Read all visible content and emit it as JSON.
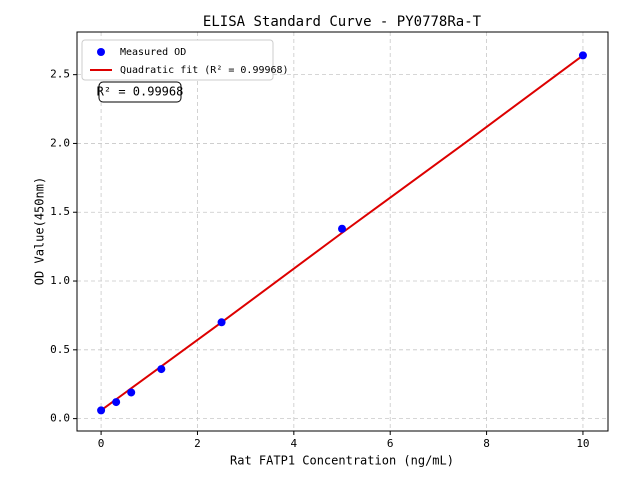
{
  "chart_data": {
    "type": "scatter",
    "title": "ELISA Standard Curve - PY0778Ra-T",
    "x_label": "Rat FATP1 Concentration (ng/mL)",
    "y_label": "OD Value(450nm)",
    "annotation": "R² = 0.99968",
    "series": [
      {
        "name": "Measured OD",
        "color": "#0000ff",
        "type": "scatter",
        "x": [
          0,
          0.3125,
          0.625,
          1.25,
          2.5,
          5,
          10
        ],
        "values": [
          0.06,
          0.12,
          0.19,
          0.36,
          0.7,
          1.38,
          2.64
        ]
      },
      {
        "name": "Quadratic fit (R² = 0.99968)",
        "color": "#dd0000",
        "type": "line",
        "x": [
          0,
          2.5,
          5,
          7.5,
          10
        ],
        "values": [
          0.06,
          0.7,
          1.35,
          1.99,
          2.64
        ]
      }
    ],
    "xlim": [
      -0.5,
      10.52
    ],
    "ylim": [
      -0.09,
      2.81
    ],
    "xticks": [
      0,
      2,
      4,
      6,
      8,
      10
    ],
    "yticks": [
      {
        "value": 0,
        "label": "0.0"
      },
      0.5,
      {
        "value": 1,
        "label": "1.0"
      },
      1.5,
      {
        "value": 2,
        "label": "2.0"
      },
      2.5
    ],
    "grid": true,
    "legend": "upper left"
  }
}
